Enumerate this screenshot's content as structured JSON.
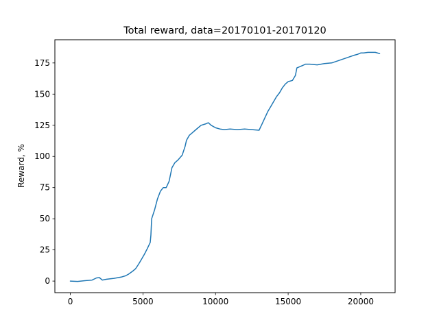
{
  "chart_data": {
    "type": "line",
    "title": "Total reward, data=20170101-20170120",
    "xlabel": "",
    "ylabel": "Reward, %",
    "xlim": [
      -1065,
      22365
    ],
    "ylim": [
      -9.3,
      193.6
    ],
    "xticks": [
      0,
      5000,
      10000,
      15000,
      20000
    ],
    "xtick_labels": [
      "0",
      "5000",
      "10000",
      "15000",
      "20000"
    ],
    "yticks": [
      0,
      25,
      50,
      75,
      100,
      125,
      150,
      175
    ],
    "ytick_labels": [
      "0",
      "25",
      "50",
      "75",
      "100",
      "125",
      "150",
      "175"
    ],
    "grid": false,
    "line_color": "#1f77b4",
    "series": [
      {
        "x": [
          0,
          500,
          1000,
          1500,
          1800,
          2000,
          2200,
          2500,
          3000,
          3500,
          3800,
          4000,
          4300,
          4500,
          4700,
          4900,
          5100,
          5300,
          5500,
          5550,
          5600,
          5800,
          6000,
          6200,
          6400,
          6600,
          6800,
          7000,
          7200,
          7400,
          7700,
          7900,
          8000,
          8200,
          8400,
          8600,
          9000,
          9300,
          9500,
          9700,
          10000,
          10300,
          10600,
          11000,
          11500,
          12000,
          12500,
          13000,
          13200,
          13400,
          13600,
          13800,
          14000,
          14200,
          14400,
          14600,
          14800,
          15000,
          15300,
          15500,
          15600,
          15800,
          16000,
          16200,
          16500,
          17000,
          17500,
          18000,
          18500,
          19000,
          19500,
          19800,
          20000,
          20200,
          20500,
          21000,
          21300
        ],
        "y": [
          0,
          -0.3,
          0.3,
          0.8,
          2.5,
          2.8,
          0.8,
          1.5,
          2.2,
          3.2,
          4.2,
          5.5,
          8,
          10,
          13.5,
          17.5,
          21.5,
          26,
          31,
          37,
          50,
          57,
          66,
          72,
          75,
          75,
          80,
          91,
          95,
          97,
          101,
          108,
          113,
          117,
          119,
          121,
          125,
          126,
          127,
          125,
          123,
          122,
          121.5,
          122,
          121.5,
          122,
          121.5,
          121,
          126,
          131,
          136,
          140,
          144,
          148,
          151,
          155,
          158,
          160,
          161,
          165,
          171,
          172,
          173,
          174,
          174,
          173.5,
          174.5,
          175,
          177,
          179,
          181,
          182,
          183,
          183,
          183.5,
          183.5,
          182.5
        ]
      }
    ]
  }
}
